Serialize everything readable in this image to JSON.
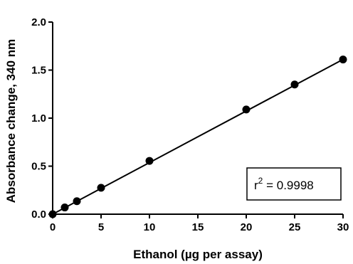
{
  "chart_data": {
    "type": "scatter",
    "title": "",
    "xlabel": "Ethanol (µg per assay)",
    "ylabel": "Absorbance change, 340 nm",
    "xlim": [
      0,
      30
    ],
    "ylim": [
      0,
      2.0
    ],
    "x_ticks": [
      "0",
      "5",
      "10",
      "15",
      "20",
      "25",
      "30"
    ],
    "y_ticks": [
      "0.0",
      "0.5",
      "1.0",
      "1.5",
      "2.0"
    ],
    "grid": false,
    "series": [
      {
        "x": [
          0,
          1.25,
          2.5,
          5,
          10,
          20,
          25,
          30
        ],
        "y": [
          0.0,
          0.07,
          0.135,
          0.275,
          0.555,
          1.09,
          1.35,
          1.61
        ],
        "marker": "circle",
        "color": "#000000"
      }
    ],
    "fit_line": {
      "slope": 0.0537,
      "intercept": 0.0
    },
    "annotation": {
      "r_label": "r",
      "r_exponent": "2",
      "text": " = 0.9998",
      "box": true
    }
  }
}
